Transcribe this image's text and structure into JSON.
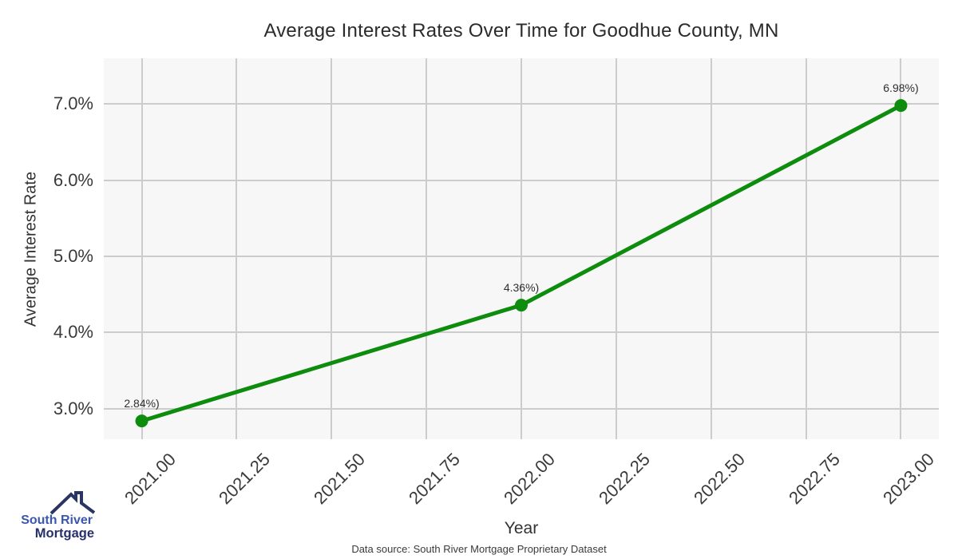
{
  "chart": {
    "title": "Average Interest Rates Over Time for Goodhue County, MN",
    "xlabel": "Year",
    "ylabel": "Average Interest Rate",
    "footer": "Data source: South River Mortgage Proprietary Dataset"
  },
  "chart_data": {
    "type": "line",
    "title": "Average Interest Rates Over Time for Goodhue County, MN",
    "xlabel": "Year",
    "ylabel": "Average Interest Rate",
    "x": [
      2021,
      2022,
      2023
    ],
    "y": [
      2.84,
      4.36,
      6.98
    ],
    "point_labels": [
      "2.84%)",
      "4.36%)",
      "6.98%)"
    ],
    "x_ticks": [
      2021.0,
      2021.25,
      2021.5,
      2021.75,
      2022.0,
      2022.25,
      2022.5,
      2022.75,
      2023.0
    ],
    "x_tick_labels": [
      "2021.00",
      "2021.25",
      "2021.50",
      "2021.75",
      "2022.00",
      "2022.25",
      "2022.50",
      "2022.75",
      "2023.00"
    ],
    "y_ticks": [
      3.0,
      4.0,
      5.0,
      6.0,
      7.0
    ],
    "y_tick_labels": [
      "3.0%",
      "4.0%",
      "5.0%",
      "6.0%",
      "7.0%"
    ],
    "xlim": [
      2020.9,
      2023.1
    ],
    "ylim": [
      2.6,
      7.6
    ],
    "line_color": "#0d8c0d",
    "marker_color": "#0d8c0d",
    "line_width": 5,
    "marker_radius": 8,
    "grid": true,
    "legend_position": "none",
    "plot_bg": "#f7f7f7",
    "grid_color": "#cccccc"
  },
  "branding": {
    "name_line1": "South River",
    "name_line2": "Mortgage",
    "color_line1": "#3a57ad",
    "color_line2": "#27306b",
    "roof_color": "#2b3563",
    "roof_icon": "house-roof-icon"
  }
}
